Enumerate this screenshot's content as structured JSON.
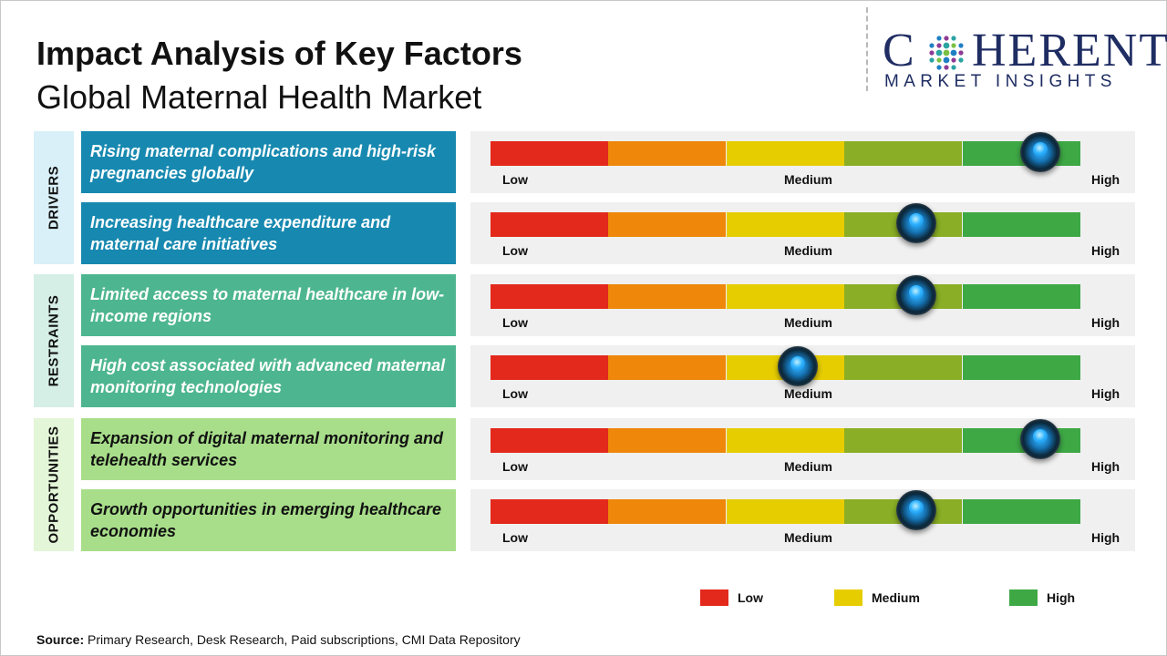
{
  "header": {
    "title": "Impact Analysis of Key Factors",
    "subtitle": "Global Maternal Health Market"
  },
  "logo": {
    "letter_c": "C",
    "rest": "HERENT",
    "tagline": "MARKET INSIGHTS"
  },
  "colors": {
    "text": "#111111",
    "drivers_band": "#d9f0f8",
    "drivers_box": "#1789b0",
    "restraints_band": "#d5efe6",
    "restraints_box": "#4db690",
    "opportunities_band": "#e3f6d8",
    "opportunities_box": "#a8de8a",
    "scale": [
      "#e3291c",
      "#ee870a",
      "#e6cd00",
      "#8aae25",
      "#3ea845"
    ]
  },
  "scale_labels": {
    "low": "Low",
    "medium": "Medium",
    "high": "High"
  },
  "chart_data": {
    "type": "bar",
    "scale_levels": [
      "Low",
      "Medium",
      "High"
    ],
    "value_range": [
      0,
      1
    ],
    "groups": [
      {
        "name": "DRIVERS",
        "factors": [
          {
            "label": "Rising maternal complications and high-risk pregnancies globally",
            "impact": 0.93
          },
          {
            "label": "Increasing healthcare expenditure and maternal care initiatives",
            "impact": 0.72
          }
        ]
      },
      {
        "name": "RESTRAINTS",
        "factors": [
          {
            "label": "Limited access to maternal healthcare in low-income regions",
            "impact": 0.72
          },
          {
            "label": "High cost associated with advanced maternal monitoring technologies",
            "impact": 0.52
          }
        ]
      },
      {
        "name": "OPPORTUNITIES",
        "factors": [
          {
            "label": "Expansion of digital maternal monitoring and telehealth services",
            "impact": 0.93
          },
          {
            "label": "Growth opportunities in emerging healthcare economies",
            "impact": 0.72
          }
        ]
      }
    ],
    "legend": [
      {
        "label": "Low",
        "color": "#e3291c"
      },
      {
        "label": "Medium",
        "color": "#e6cd00"
      },
      {
        "label": "High",
        "color": "#3ea845"
      }
    ],
    "legend_placement": "bottom-right"
  },
  "source": {
    "label": "Source:",
    "text": " Primary Research, Desk Research, Paid subscriptions, CMI Data Repository"
  }
}
